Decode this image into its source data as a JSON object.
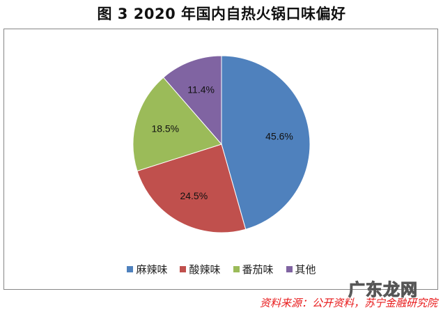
{
  "title": "图 3  2020 年国内自热火锅口味偏好",
  "chart_data": {
    "type": "pie",
    "title": "图 3  2020 年国内自热火锅口味偏好",
    "categories": [
      "麻辣味",
      "酸辣味",
      "番茄味",
      "其他"
    ],
    "values": [
      45.6,
      24.5,
      18.5,
      11.4
    ],
    "labels": [
      "45.6%",
      "24.5%",
      "18.5%",
      "11.4%"
    ],
    "colors": [
      "#4f81bd",
      "#c0504d",
      "#9bbb59",
      "#8064a2"
    ],
    "start_angle": "12 o'clock, clockwise",
    "legend_position": "bottom"
  },
  "legend": [
    {
      "label": "麻辣味",
      "color": "#4f81bd"
    },
    {
      "label": "酸辣味",
      "color": "#c0504d"
    },
    {
      "label": "番茄味",
      "color": "#9bbb59"
    },
    {
      "label": "其他",
      "color": "#8064a2"
    }
  ],
  "source": "资料来源：公开资料，苏宁金融研究院",
  "watermark": "广东龙网"
}
